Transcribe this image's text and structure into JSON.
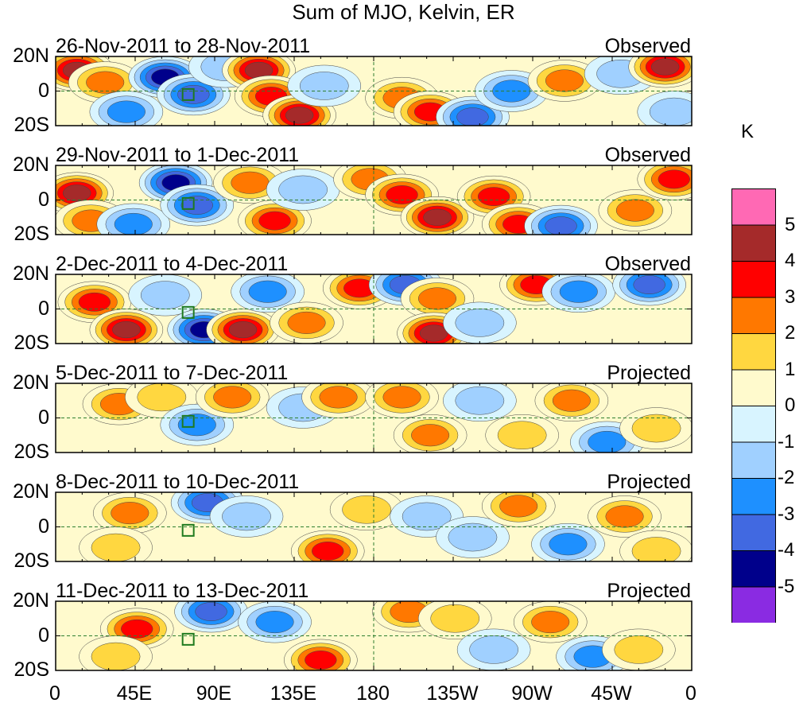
{
  "title": "Sum of MJO, Kelvin, ER",
  "chart_data": {
    "type": "heatmap",
    "title": "Sum of MJO, Kelvin, ER",
    "variable_units": "K",
    "latitude_labels": [
      "20N",
      "0",
      "20S"
    ],
    "longitude_labels": [
      "0",
      "45E",
      "90E",
      "135E",
      "180",
      "135W",
      "90W",
      "45W",
      "0"
    ],
    "lon_range": [
      0,
      360
    ],
    "lat_range": [
      -20,
      20
    ],
    "color_levels": [
      -5,
      -4,
      -3,
      -2,
      -1,
      0,
      1,
      2,
      3,
      4,
      5
    ],
    "colors": [
      "#8a2be2",
      "#00008b",
      "#4169e1",
      "#1e90ff",
      "#a0d0ff",
      "#d8f4ff",
      "#fffacd",
      "#ffd740",
      "#ff7800",
      "#ff0000",
      "#a52a2a",
      "#ff69b4"
    ],
    "panels": [
      {
        "period": "26-Nov-2011 to 28-Nov-2011",
        "status": "Observed",
        "features": [
          {
            "lon": 12,
            "lat": 12,
            "v": 5
          },
          {
            "lon": 28,
            "lat": 5,
            "v": 3
          },
          {
            "lon": 40,
            "lat": -12,
            "v": -3
          },
          {
            "lon": 62,
            "lat": 8,
            "v": -5
          },
          {
            "lon": 78,
            "lat": -2,
            "v": -4
          },
          {
            "lon": 96,
            "lat": 14,
            "v": -2
          },
          {
            "lon": 115,
            "lat": 12,
            "v": 5
          },
          {
            "lon": 122,
            "lat": -3,
            "v": 4
          },
          {
            "lon": 138,
            "lat": -14,
            "v": 5
          },
          {
            "lon": 152,
            "lat": 3,
            "v": -2
          },
          {
            "lon": 196,
            "lat": -4,
            "v": 3
          },
          {
            "lon": 212,
            "lat": -12,
            "v": 4
          },
          {
            "lon": 236,
            "lat": -15,
            "v": -4
          },
          {
            "lon": 258,
            "lat": 0,
            "v": -3
          },
          {
            "lon": 288,
            "lat": 6,
            "v": 3
          },
          {
            "lon": 320,
            "lat": 10,
            "v": -2
          },
          {
            "lon": 345,
            "lat": 14,
            "v": 5
          },
          {
            "lon": 350,
            "lat": -12,
            "v": -2
          }
        ]
      },
      {
        "period": "29-Nov-2011 to 1-Dec-2011",
        "status": "Observed",
        "features": [
          {
            "lon": 12,
            "lat": 4,
            "v": 5
          },
          {
            "lon": 20,
            "lat": -12,
            "v": 3
          },
          {
            "lon": 44,
            "lat": -14,
            "v": -3
          },
          {
            "lon": 68,
            "lat": 10,
            "v": -5
          },
          {
            "lon": 80,
            "lat": -3,
            "v": -4
          },
          {
            "lon": 110,
            "lat": 10,
            "v": 3
          },
          {
            "lon": 124,
            "lat": -12,
            "v": 4
          },
          {
            "lon": 140,
            "lat": 6,
            "v": -2
          },
          {
            "lon": 178,
            "lat": 12,
            "v": 3
          },
          {
            "lon": 196,
            "lat": 3,
            "v": 4
          },
          {
            "lon": 216,
            "lat": -10,
            "v": 5
          },
          {
            "lon": 248,
            "lat": 2,
            "v": 4
          },
          {
            "lon": 262,
            "lat": -14,
            "v": 4
          },
          {
            "lon": 286,
            "lat": -15,
            "v": -4
          },
          {
            "lon": 328,
            "lat": -6,
            "v": 3
          },
          {
            "lon": 350,
            "lat": 12,
            "v": 4
          }
        ]
      },
      {
        "period": "2-Dec-2011 to 4-Dec-2011",
        "status": "Observed",
        "features": [
          {
            "lon": 22,
            "lat": 4,
            "v": 4
          },
          {
            "lon": 40,
            "lat": -12,
            "v": 5
          },
          {
            "lon": 62,
            "lat": 8,
            "v": -2
          },
          {
            "lon": 84,
            "lat": -12,
            "v": -5
          },
          {
            "lon": 106,
            "lat": -12,
            "v": 5
          },
          {
            "lon": 120,
            "lat": 10,
            "v": -3
          },
          {
            "lon": 142,
            "lat": -8,
            "v": 3
          },
          {
            "lon": 172,
            "lat": 12,
            "v": 4
          },
          {
            "lon": 198,
            "lat": 14,
            "v": -4
          },
          {
            "lon": 216,
            "lat": 6,
            "v": 3
          },
          {
            "lon": 214,
            "lat": -14,
            "v": 5
          },
          {
            "lon": 240,
            "lat": -8,
            "v": -2
          },
          {
            "lon": 272,
            "lat": 14,
            "v": 4
          },
          {
            "lon": 296,
            "lat": 10,
            "v": -3
          },
          {
            "lon": 336,
            "lat": 14,
            "v": -4
          }
        ]
      },
      {
        "period": "5-Dec-2011 to 7-Dec-2011",
        "status": "Projected",
        "features": [
          {
            "lon": 36,
            "lat": 8,
            "v": 3
          },
          {
            "lon": 60,
            "lat": 12,
            "v": 2
          },
          {
            "lon": 80,
            "lat": -4,
            "v": -3
          },
          {
            "lon": 100,
            "lat": 12,
            "v": 3
          },
          {
            "lon": 140,
            "lat": 6,
            "v": -2
          },
          {
            "lon": 160,
            "lat": 12,
            "v": 3
          },
          {
            "lon": 196,
            "lat": 12,
            "v": 3
          },
          {
            "lon": 212,
            "lat": -10,
            "v": 3
          },
          {
            "lon": 240,
            "lat": 10,
            "v": -2
          },
          {
            "lon": 264,
            "lat": -10,
            "v": 2
          },
          {
            "lon": 292,
            "lat": 10,
            "v": 3
          },
          {
            "lon": 312,
            "lat": -14,
            "v": -3
          },
          {
            "lon": 340,
            "lat": -6,
            "v": 2
          }
        ]
      },
      {
        "period": "8-Dec-2011 to 10-Dec-2011",
        "status": "Projected",
        "features": [
          {
            "lon": 42,
            "lat": 8,
            "v": 3
          },
          {
            "lon": 34,
            "lat": -12,
            "v": 2
          },
          {
            "lon": 86,
            "lat": 14,
            "v": -4
          },
          {
            "lon": 108,
            "lat": 6,
            "v": -2
          },
          {
            "lon": 154,
            "lat": -14,
            "v": 4
          },
          {
            "lon": 176,
            "lat": 10,
            "v": 2
          },
          {
            "lon": 210,
            "lat": 6,
            "v": -2
          },
          {
            "lon": 236,
            "lat": -6,
            "v": -2
          },
          {
            "lon": 262,
            "lat": 12,
            "v": 3
          },
          {
            "lon": 290,
            "lat": -10,
            "v": -3
          },
          {
            "lon": 322,
            "lat": 6,
            "v": 3
          },
          {
            "lon": 340,
            "lat": -14,
            "v": 2
          }
        ]
      },
      {
        "period": "11-Dec-2011 to 13-Dec-2011",
        "status": "Projected",
        "features": [
          {
            "lon": 46,
            "lat": 4,
            "v": 4
          },
          {
            "lon": 34,
            "lat": -12,
            "v": 2
          },
          {
            "lon": 88,
            "lat": 14,
            "v": -4
          },
          {
            "lon": 124,
            "lat": 8,
            "v": -3
          },
          {
            "lon": 150,
            "lat": -14,
            "v": 4
          },
          {
            "lon": 200,
            "lat": 14,
            "v": 3
          },
          {
            "lon": 226,
            "lat": 10,
            "v": 2
          },
          {
            "lon": 248,
            "lat": -8,
            "v": -2
          },
          {
            "lon": 280,
            "lat": 8,
            "v": 3
          },
          {
            "lon": 304,
            "lat": -12,
            "v": -3
          },
          {
            "lon": 330,
            "lat": -8,
            "v": 2
          }
        ]
      }
    ]
  }
}
